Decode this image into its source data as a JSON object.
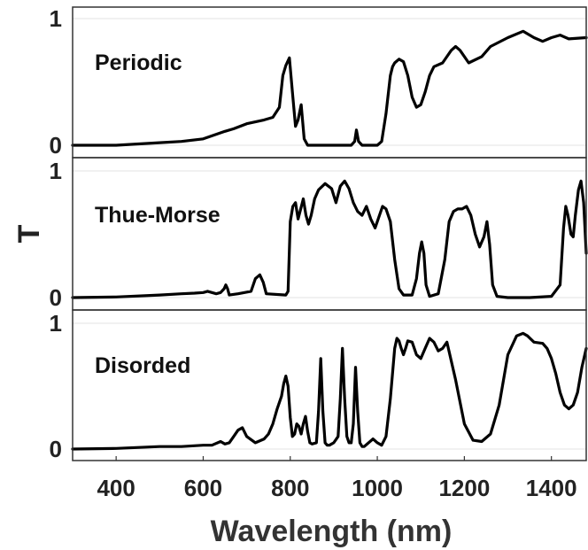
{
  "chart_data": {
    "type": "line",
    "xlabel": "Wavelength (nm)",
    "ylabel": "T",
    "xlim": [
      300,
      1480
    ],
    "ylim": [
      0,
      1
    ],
    "xticks": [
      400,
      600,
      800,
      1000,
      1200,
      1400
    ],
    "yticks": [
      0,
      1
    ],
    "grid": "horizontal",
    "panels": [
      {
        "label": "Periodic",
        "x": [
          300,
          400,
          500,
          550,
          600,
          650,
          670,
          700,
          740,
          760,
          775,
          783,
          790,
          798,
          805,
          812,
          818,
          825,
          832,
          840,
          860,
          900,
          940,
          948,
          952,
          957,
          965,
          1000,
          1010,
          1020,
          1030,
          1035,
          1040,
          1050,
          1060,
          1070,
          1080,
          1090,
          1100,
          1110,
          1120,
          1130,
          1150,
          1160,
          1170,
          1180,
          1190,
          1210,
          1240,
          1260,
          1300,
          1335,
          1360,
          1380,
          1400,
          1420,
          1440,
          1480
        ],
        "y": [
          0,
          0,
          0.02,
          0.03,
          0.05,
          0.11,
          0.13,
          0.17,
          0.2,
          0.22,
          0.3,
          0.55,
          0.63,
          0.69,
          0.42,
          0.15,
          0.2,
          0.32,
          0.05,
          0.0,
          0.0,
          0.0,
          0.0,
          0.03,
          0.12,
          0.03,
          0.0,
          0.0,
          0.03,
          0.25,
          0.55,
          0.62,
          0.65,
          0.68,
          0.66,
          0.55,
          0.38,
          0.3,
          0.32,
          0.42,
          0.55,
          0.62,
          0.65,
          0.7,
          0.75,
          0.78,
          0.75,
          0.65,
          0.7,
          0.78,
          0.85,
          0.9,
          0.85,
          0.82,
          0.85,
          0.87,
          0.84,
          0.85
        ]
      },
      {
        "label": "Thue-Morse",
        "x": [
          300,
          400,
          500,
          550,
          580,
          600,
          610,
          620,
          630,
          640,
          648,
          652,
          656,
          660,
          680,
          710,
          720,
          730,
          738,
          745,
          790,
          795,
          800,
          806,
          812,
          818,
          824,
          830,
          836,
          842,
          848,
          856,
          865,
          880,
          895,
          905,
          915,
          925,
          935,
          945,
          955,
          965,
          975,
          985,
          995,
          1005,
          1012,
          1020,
          1030,
          1040,
          1050,
          1060,
          1080,
          1090,
          1097,
          1102,
          1107,
          1112,
          1120,
          1140,
          1155,
          1165,
          1175,
          1185,
          1195,
          1205,
          1215,
          1225,
          1235,
          1245,
          1252,
          1258,
          1265,
          1275,
          1300,
          1350,
          1400,
          1420,
          1428,
          1433,
          1438,
          1445,
          1450,
          1455,
          1462,
          1468,
          1474,
          1480
        ],
        "y": [
          0,
          0.005,
          0.02,
          0.03,
          0.035,
          0.04,
          0.05,
          0.04,
          0.03,
          0.04,
          0.07,
          0.1,
          0.07,
          0.02,
          0.03,
          0.05,
          0.15,
          0.18,
          0.12,
          0.03,
          0.02,
          0.05,
          0.6,
          0.72,
          0.75,
          0.62,
          0.7,
          0.78,
          0.65,
          0.58,
          0.65,
          0.78,
          0.85,
          0.9,
          0.86,
          0.75,
          0.88,
          0.92,
          0.86,
          0.75,
          0.68,
          0.65,
          0.72,
          0.62,
          0.55,
          0.65,
          0.72,
          0.7,
          0.6,
          0.3,
          0.07,
          0.02,
          0.02,
          0.15,
          0.35,
          0.44,
          0.35,
          0.1,
          0.01,
          0.03,
          0.3,
          0.6,
          0.68,
          0.7,
          0.7,
          0.72,
          0.65,
          0.5,
          0.4,
          0.48,
          0.6,
          0.42,
          0.1,
          0.01,
          0.0,
          0.0,
          0.01,
          0.1,
          0.55,
          0.72,
          0.65,
          0.5,
          0.48,
          0.65,
          0.85,
          0.92,
          0.75,
          0.35
        ]
      },
      {
        "label": "Disorded",
        "x": [
          300,
          400,
          500,
          550,
          600,
          620,
          640,
          650,
          660,
          670,
          680,
          690,
          700,
          720,
          740,
          750,
          760,
          770,
          780,
          785,
          790,
          795,
          800,
          805,
          810,
          815,
          820,
          825,
          830,
          835,
          840,
          845,
          850,
          860,
          865,
          870,
          875,
          880,
          885,
          890,
          900,
          910,
          915,
          920,
          925,
          930,
          935,
          940,
          945,
          950,
          955,
          960,
          965,
          970,
          980,
          990,
          1000,
          1010,
          1020,
          1030,
          1040,
          1045,
          1050,
          1055,
          1060,
          1065,
          1070,
          1080,
          1090,
          1100,
          1110,
          1120,
          1130,
          1140,
          1150,
          1160,
          1180,
          1200,
          1220,
          1240,
          1260,
          1280,
          1300,
          1320,
          1335,
          1345,
          1360,
          1380,
          1390,
          1400,
          1410,
          1420,
          1430,
          1440,
          1450,
          1460,
          1470,
          1480
        ],
        "y": [
          0,
          0.005,
          0.02,
          0.02,
          0.03,
          0.03,
          0.06,
          0.04,
          0.05,
          0.1,
          0.15,
          0.17,
          0.1,
          0.05,
          0.08,
          0.12,
          0.2,
          0.32,
          0.42,
          0.52,
          0.58,
          0.5,
          0.25,
          0.1,
          0.12,
          0.2,
          0.18,
          0.12,
          0.2,
          0.26,
          0.14,
          0.05,
          0.04,
          0.05,
          0.3,
          0.72,
          0.3,
          0.05,
          0.03,
          0.03,
          0.05,
          0.1,
          0.4,
          0.8,
          0.4,
          0.1,
          0.05,
          0.05,
          0.2,
          0.65,
          0.3,
          0.05,
          0.02,
          0.02,
          0.05,
          0.08,
          0.05,
          0.03,
          0.1,
          0.4,
          0.8,
          0.88,
          0.86,
          0.8,
          0.75,
          0.8,
          0.86,
          0.85,
          0.75,
          0.72,
          0.8,
          0.88,
          0.85,
          0.78,
          0.8,
          0.85,
          0.55,
          0.2,
          0.07,
          0.06,
          0.12,
          0.35,
          0.75,
          0.9,
          0.92,
          0.9,
          0.85,
          0.84,
          0.8,
          0.72,
          0.6,
          0.45,
          0.35,
          0.32,
          0.35,
          0.45,
          0.65,
          0.8
        ]
      }
    ]
  }
}
